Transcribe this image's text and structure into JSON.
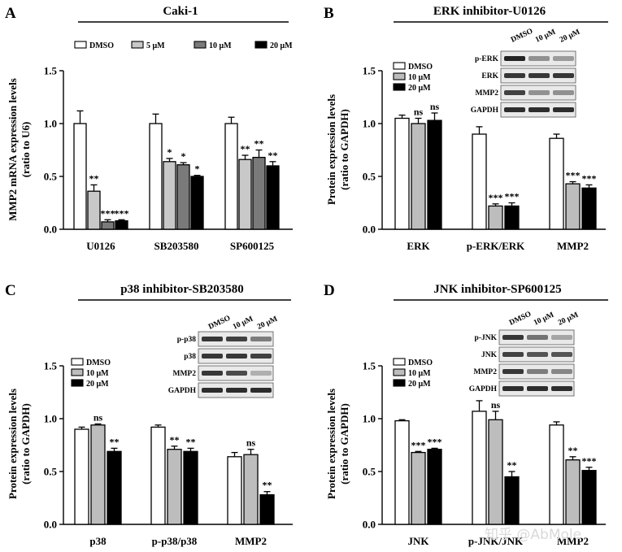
{
  "colors": {
    "dmso": "#ffffff",
    "c5": "#c8c8c8",
    "c10": "#bdbdbd",
    "c10_dark": "#7a7a7a",
    "c20": "#000000",
    "stroke": "#000000"
  },
  "watermark": "知乎 @AbMole",
  "chart_data": [
    {
      "type": "bar",
      "panel": "A",
      "title": "Caki-1",
      "ylabel_line1": "MMP2 mRNA expression levels",
      "ylabel_line2": "(ratio to U6)",
      "ylim": [
        0,
        1.5
      ],
      "yticks": [
        "0.0",
        "0.5",
        "1.0",
        "1.5"
      ],
      "categories": [
        "U0126",
        "SB203580",
        "SP600125"
      ],
      "legend": [
        "DMSO",
        "5 μM",
        "10 μM",
        "20 μM"
      ],
      "series": [
        {
          "name": "DMSO",
          "values": [
            1.0,
            1.0,
            1.0
          ],
          "errors": [
            0.12,
            0.09,
            0.06
          ],
          "sig": [
            "",
            "",
            ""
          ]
        },
        {
          "name": "5 μM",
          "values": [
            0.36,
            0.64,
            0.66
          ],
          "errors": [
            0.06,
            0.03,
            0.04
          ],
          "sig": [
            "**",
            "*",
            "**"
          ]
        },
        {
          "name": "10 μM",
          "values": [
            0.07,
            0.61,
            0.68
          ],
          "errors": [
            0.02,
            0.02,
            0.07
          ],
          "sig": [
            "***",
            "*",
            "**"
          ]
        },
        {
          "name": "20 μM",
          "values": [
            0.08,
            0.5,
            0.6
          ],
          "errors": [
            0.01,
            0.01,
            0.04
          ],
          "sig": [
            "***",
            "*",
            "**"
          ]
        }
      ]
    },
    {
      "type": "bar",
      "panel": "B",
      "title": "ERK inhibitor-U0126",
      "ylabel_line1": "Protein expression levels",
      "ylabel_line2": "(ratio to GAPDH)",
      "ylim": [
        0,
        1.5
      ],
      "yticks": [
        "0.0",
        "0.5",
        "1.0",
        "1.5"
      ],
      "categories": [
        "ERK",
        "p-ERK/ERK",
        "MMP2"
      ],
      "legend": [
        "DMSO",
        "10 μM",
        "20 μM"
      ],
      "series": [
        {
          "name": "DMSO",
          "values": [
            1.05,
            0.9,
            0.86
          ],
          "errors": [
            0.03,
            0.07,
            0.04
          ],
          "sig": [
            "",
            "",
            ""
          ]
        },
        {
          "name": "10 μM",
          "values": [
            1.0,
            0.22,
            0.43
          ],
          "errors": [
            0.05,
            0.02,
            0.02
          ],
          "sig": [
            "ns",
            "***",
            "***"
          ]
        },
        {
          "name": "20 μM",
          "values": [
            1.03,
            0.22,
            0.39
          ],
          "errors": [
            0.07,
            0.03,
            0.03
          ],
          "sig": [
            "ns",
            "***",
            "***"
          ]
        }
      ],
      "blot": {
        "lanes": [
          "DMSO",
          "10 μM",
          "20 μM"
        ],
        "rows": [
          {
            "label": "p-ERK",
            "bands": [
              1.0,
              0.45,
              0.4
            ]
          },
          {
            "label": "ERK",
            "bands": [
              0.9,
              0.9,
              0.9
            ]
          },
          {
            "label": "MMP2",
            "bands": [
              0.85,
              0.45,
              0.45
            ]
          },
          {
            "label": "GAPDH",
            "bands": [
              0.95,
              0.95,
              0.95
            ]
          }
        ]
      }
    },
    {
      "type": "bar",
      "panel": "C",
      "title": "p38 inhibitor-SB203580",
      "ylabel_line1": "Protein expression levels",
      "ylabel_line2": "(ratio to GAPDH)",
      "ylim": [
        0,
        1.5
      ],
      "yticks": [
        "0.0",
        "0.5",
        "1.0",
        "1.5"
      ],
      "categories": [
        "p38",
        "p-p38/p38",
        "MMP2"
      ],
      "legend": [
        "DMSO",
        "10 μM",
        "20 μM"
      ],
      "series": [
        {
          "name": "DMSO",
          "values": [
            0.9,
            0.92,
            0.64
          ],
          "errors": [
            0.02,
            0.02,
            0.04
          ],
          "sig": [
            "",
            "",
            ""
          ]
        },
        {
          "name": "10 μM",
          "values": [
            0.94,
            0.71,
            0.66
          ],
          "errors": [
            0.01,
            0.03,
            0.05
          ],
          "sig": [
            "ns",
            "**",
            "ns"
          ]
        },
        {
          "name": "20 μM",
          "values": [
            0.69,
            0.69,
            0.28
          ],
          "errors": [
            0.03,
            0.03,
            0.03
          ],
          "sig": [
            "**",
            "**",
            "**"
          ]
        }
      ],
      "blot": {
        "lanes": [
          "DMSO",
          "10 μM",
          "20 μM"
        ],
        "rows": [
          {
            "label": "p-p38",
            "bands": [
              0.9,
              0.85,
              0.55
            ]
          },
          {
            "label": "p38",
            "bands": [
              0.9,
              0.9,
              0.85
            ]
          },
          {
            "label": "MMP2",
            "bands": [
              0.9,
              0.8,
              0.3
            ]
          },
          {
            "label": "GAPDH",
            "bands": [
              0.95,
              0.95,
              0.95
            ]
          }
        ]
      }
    },
    {
      "type": "bar",
      "panel": "D",
      "title": "JNK inhibitor-SP600125",
      "ylabel_line1": "Protein expression levels",
      "ylabel_line2": "(ratio to GAPDH)",
      "ylim": [
        0,
        1.5
      ],
      "yticks": [
        "0.0",
        "0.5",
        "1.0",
        "1.5"
      ],
      "categories": [
        "JNK",
        "p-JNK/JNK",
        "MMP2"
      ],
      "legend": [
        "DMSO",
        "10 μM",
        "20 μM"
      ],
      "series": [
        {
          "name": "DMSO",
          "values": [
            0.98,
            1.07,
            0.94
          ],
          "errors": [
            0.01,
            0.1,
            0.03
          ],
          "sig": [
            "",
            "",
            ""
          ]
        },
        {
          "name": "10 μM",
          "values": [
            0.68,
            0.99,
            0.61
          ],
          "errors": [
            0.01,
            0.08,
            0.03
          ],
          "sig": [
            "***",
            "ns",
            "**"
          ]
        },
        {
          "name": "20 μM",
          "values": [
            0.71,
            0.45,
            0.51
          ],
          "errors": [
            0.01,
            0.05,
            0.03
          ],
          "sig": [
            "***",
            "**",
            "***"
          ]
        }
      ],
      "blot": {
        "lanes": [
          "DMSO",
          "10 μM",
          "20 μM"
        ],
        "rows": [
          {
            "label": "p-JNK",
            "bands": [
              0.9,
              0.6,
              0.35
            ]
          },
          {
            "label": "JNK",
            "bands": [
              0.85,
              0.75,
              0.75
            ]
          },
          {
            "label": "MMP2",
            "bands": [
              0.9,
              0.55,
              0.5
            ]
          },
          {
            "label": "GAPDH",
            "bands": [
              0.95,
              0.95,
              0.95
            ]
          }
        ]
      }
    }
  ]
}
